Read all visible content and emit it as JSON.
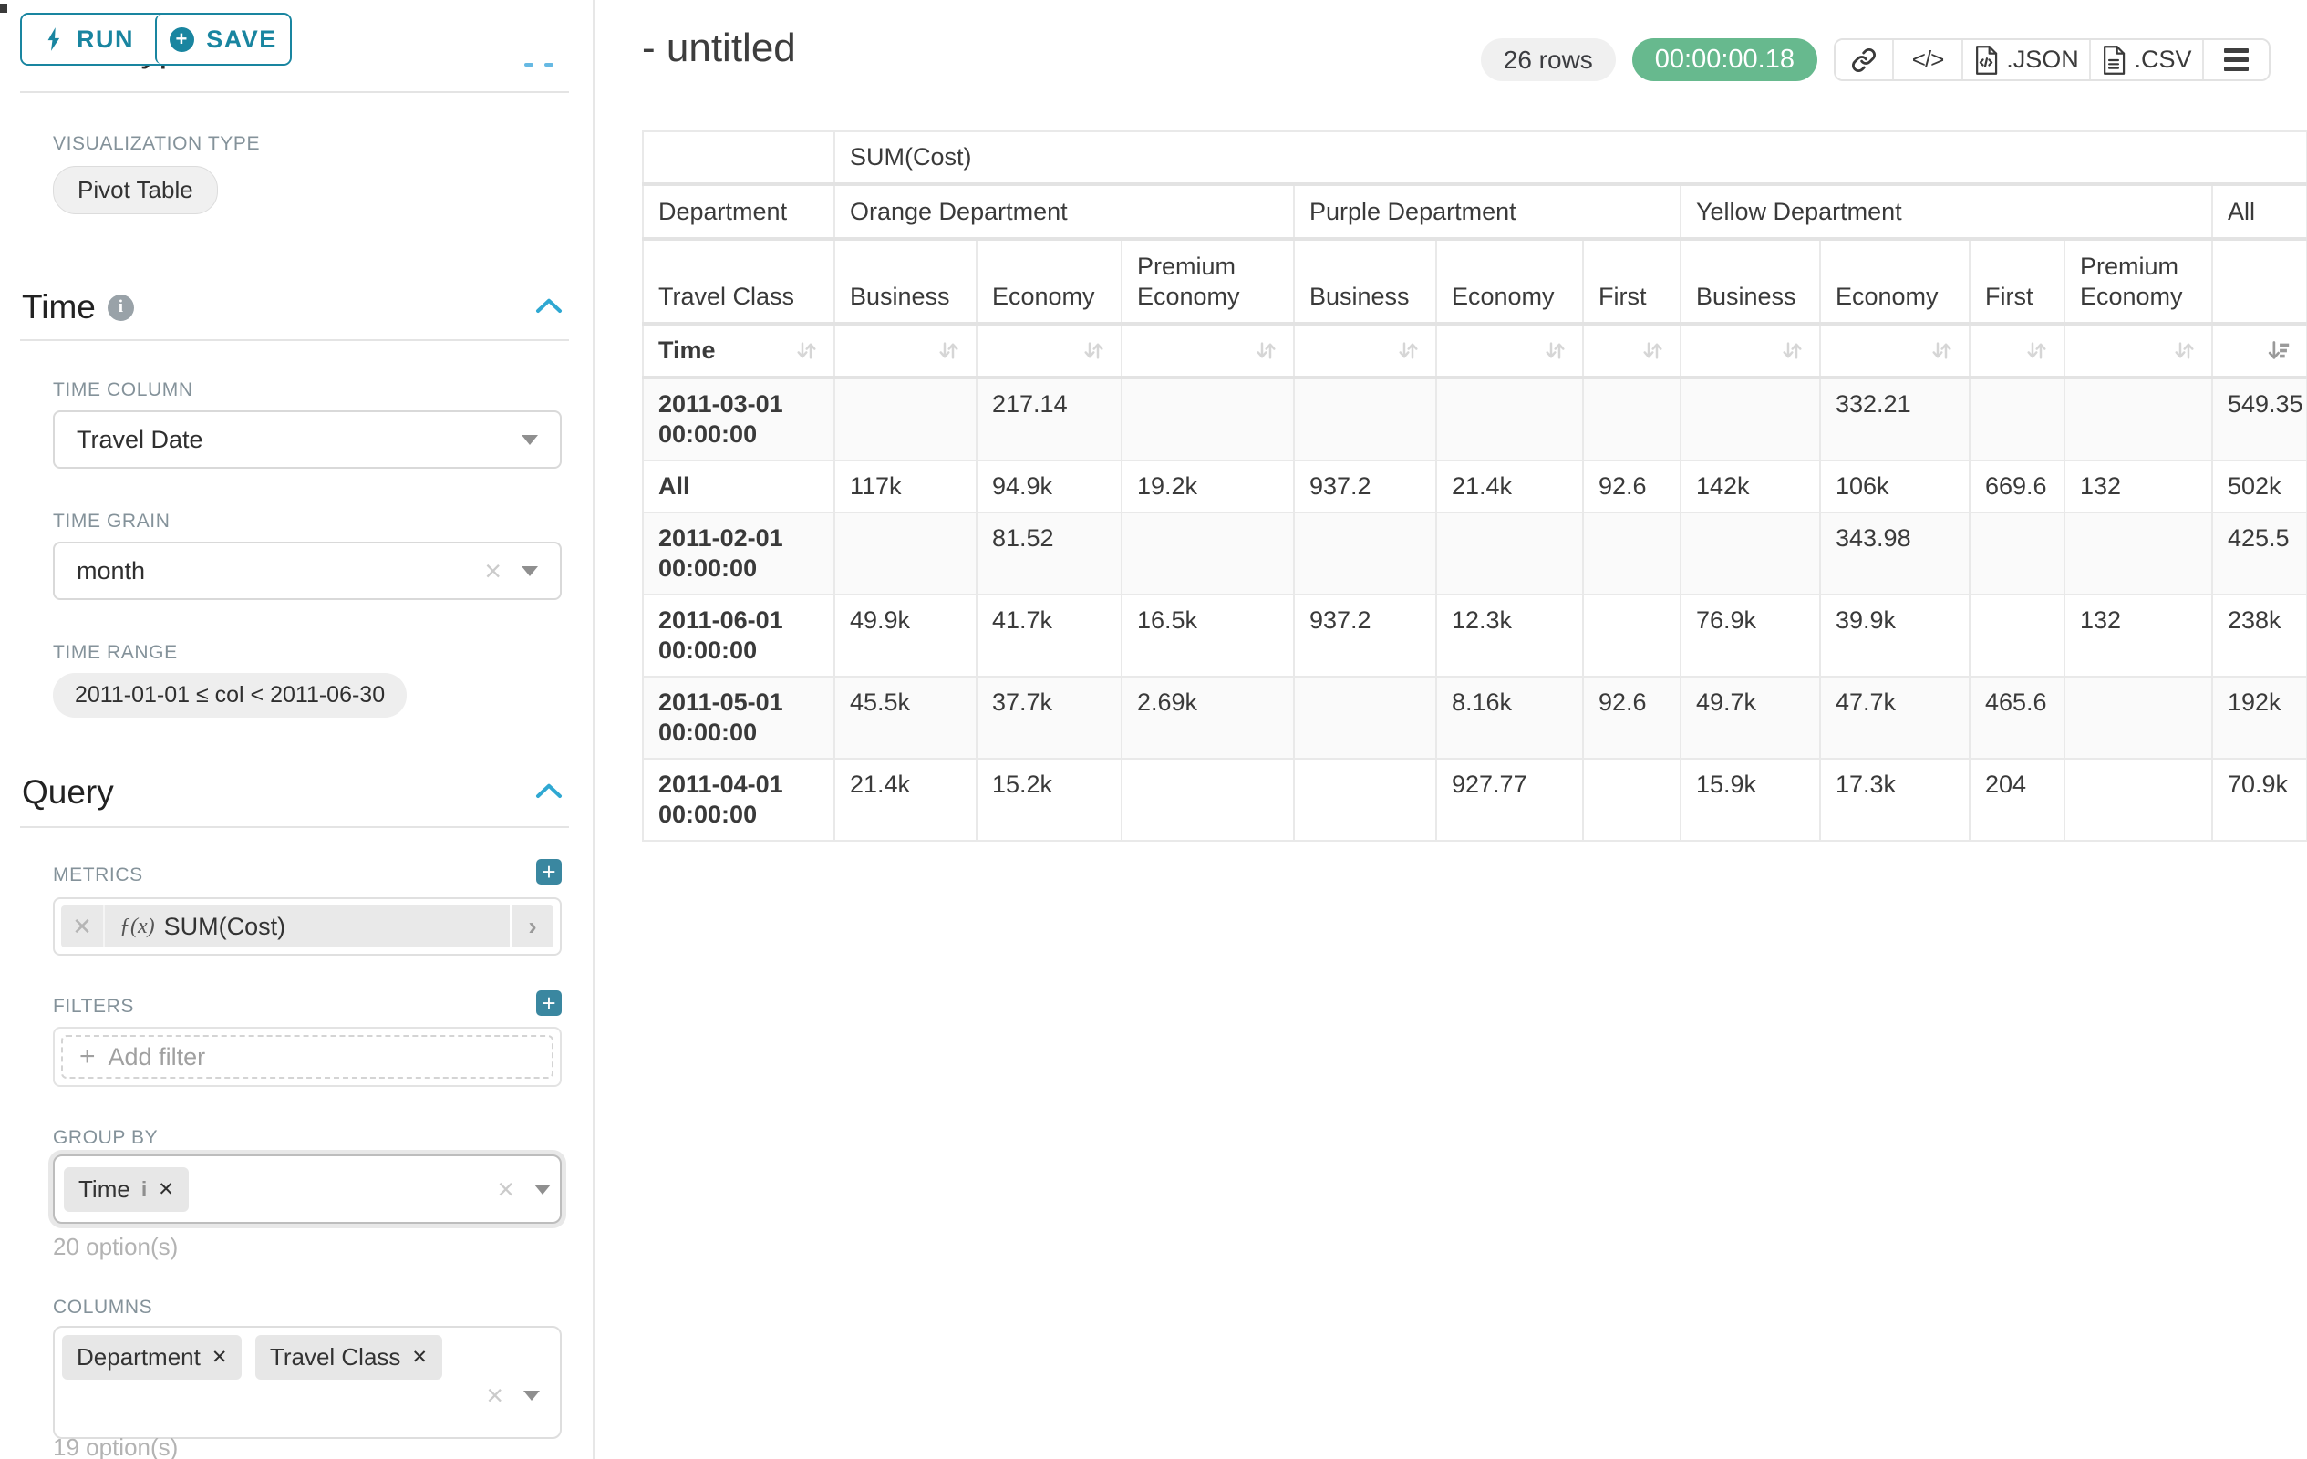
{
  "panel": {
    "run_label": "RUN",
    "save_label": "SAVE",
    "chart_type_heading": "Chart Type",
    "viz_type_label": "VISUALIZATION TYPE",
    "viz_type_value": "Pivot Table",
    "time_section_label": "Time",
    "time_column_label": "TIME COLUMN",
    "time_column_value": "Travel Date",
    "time_grain_label": "TIME GRAIN",
    "time_grain_value": "month",
    "time_range_label": "TIME RANGE",
    "time_range_value": "2011-01-01 ≤ col < 2011-06-30",
    "query_section_label": "Query",
    "metrics_label": "METRICS",
    "metric_fx": "ƒ(x)",
    "metric_value": "SUM(Cost)",
    "filters_label": "FILTERS",
    "add_filter_label": "Add filter",
    "group_by_label": "GROUP BY",
    "group_by_tags": [
      "Time"
    ],
    "group_by_options_hint": "20 option(s)",
    "columns_label": "COLUMNS",
    "columns_tags": [
      "Department",
      "Travel Class"
    ],
    "columns_options_hint": "19 option(s)"
  },
  "header": {
    "title": "- untitled",
    "rows_badge": "26 rows",
    "timer": "00:00:00.18",
    "export_json_label": ".JSON",
    "export_csv_label": ".CSV"
  },
  "table": {
    "metric_header": "SUM(Cost)",
    "row_dim_label": "Department",
    "col_dim_label": "Travel Class",
    "time_label": "Time",
    "groups": [
      {
        "label": "Orange Department",
        "columns": [
          "Business",
          "Economy",
          "Premium Economy"
        ]
      },
      {
        "label": "Purple Department",
        "columns": [
          "Business",
          "Economy",
          "First"
        ]
      },
      {
        "label": "Yellow Department",
        "columns": [
          "Business",
          "Economy",
          "First",
          "Premium Economy"
        ]
      },
      {
        "label": "All",
        "columns": [
          ""
        ]
      }
    ],
    "rows": [
      {
        "label": "2011-03-01 00:00:00",
        "values": [
          "",
          "217.14",
          "",
          "",
          "",
          "",
          "",
          "332.21",
          "",
          "",
          "549.35"
        ]
      },
      {
        "label": "All",
        "values": [
          "117k",
          "94.9k",
          "19.2k",
          "937.2",
          "21.4k",
          "92.6",
          "142k",
          "106k",
          "669.6",
          "132",
          "502k"
        ]
      },
      {
        "label": "2011-02-01 00:00:00",
        "values": [
          "",
          "81.52",
          "",
          "",
          "",
          "",
          "",
          "343.98",
          "",
          "",
          "425.5"
        ]
      },
      {
        "label": "2011-06-01 00:00:00",
        "values": [
          "49.9k",
          "41.7k",
          "16.5k",
          "937.2",
          "12.3k",
          "",
          "76.9k",
          "39.9k",
          "",
          "132",
          "238k"
        ]
      },
      {
        "label": "2011-05-01 00:00:00",
        "values": [
          "45.5k",
          "37.7k",
          "2.69k",
          "",
          "8.16k",
          "92.6",
          "49.7k",
          "47.7k",
          "465.6",
          "",
          "192k"
        ]
      },
      {
        "label": "2011-04-01 00:00:00",
        "values": [
          "21.4k",
          "15.2k",
          "",
          "",
          "927.77",
          "",
          "15.9k",
          "17.3k",
          "204",
          "",
          "70.9k"
        ]
      }
    ]
  },
  "colors": {
    "primary": "#1985a0",
    "accent": "#2fa8d2",
    "success_badge": "#67b98e"
  }
}
